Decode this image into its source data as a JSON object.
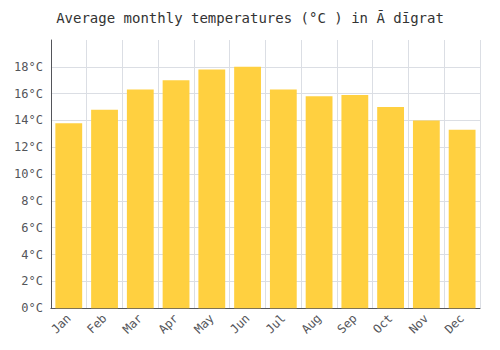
{
  "chart_data": {
    "type": "bar",
    "title": "Average monthly temperatures (°C ) in Ā dīgrat",
    "categories": [
      "Jan",
      "Feb",
      "Mar",
      "Apr",
      "May",
      "Jun",
      "Jul",
      "Aug",
      "Sep",
      "Oct",
      "Nov",
      "Dec"
    ],
    "values": [
      13.8,
      14.8,
      16.3,
      17.0,
      17.8,
      18.0,
      16.3,
      15.8,
      15.9,
      15.0,
      14.0,
      13.3
    ],
    "color": "#FFD040",
    "ylim": [
      0,
      20
    ],
    "yticks": [
      {
        "value": 0,
        "label": "0°C"
      },
      {
        "value": 2,
        "label": "2°C"
      },
      {
        "value": 4,
        "label": "4°C"
      },
      {
        "value": 6,
        "label": "6°C"
      },
      {
        "value": 8,
        "label": "8°C"
      },
      {
        "value": 10,
        "label": "10°C"
      },
      {
        "value": 12,
        "label": "12°C"
      },
      {
        "value": 14,
        "label": "14°C"
      },
      {
        "value": 16,
        "label": "16°C"
      },
      {
        "value": 18,
        "label": "18°C"
      }
    ],
    "grid": true
  }
}
